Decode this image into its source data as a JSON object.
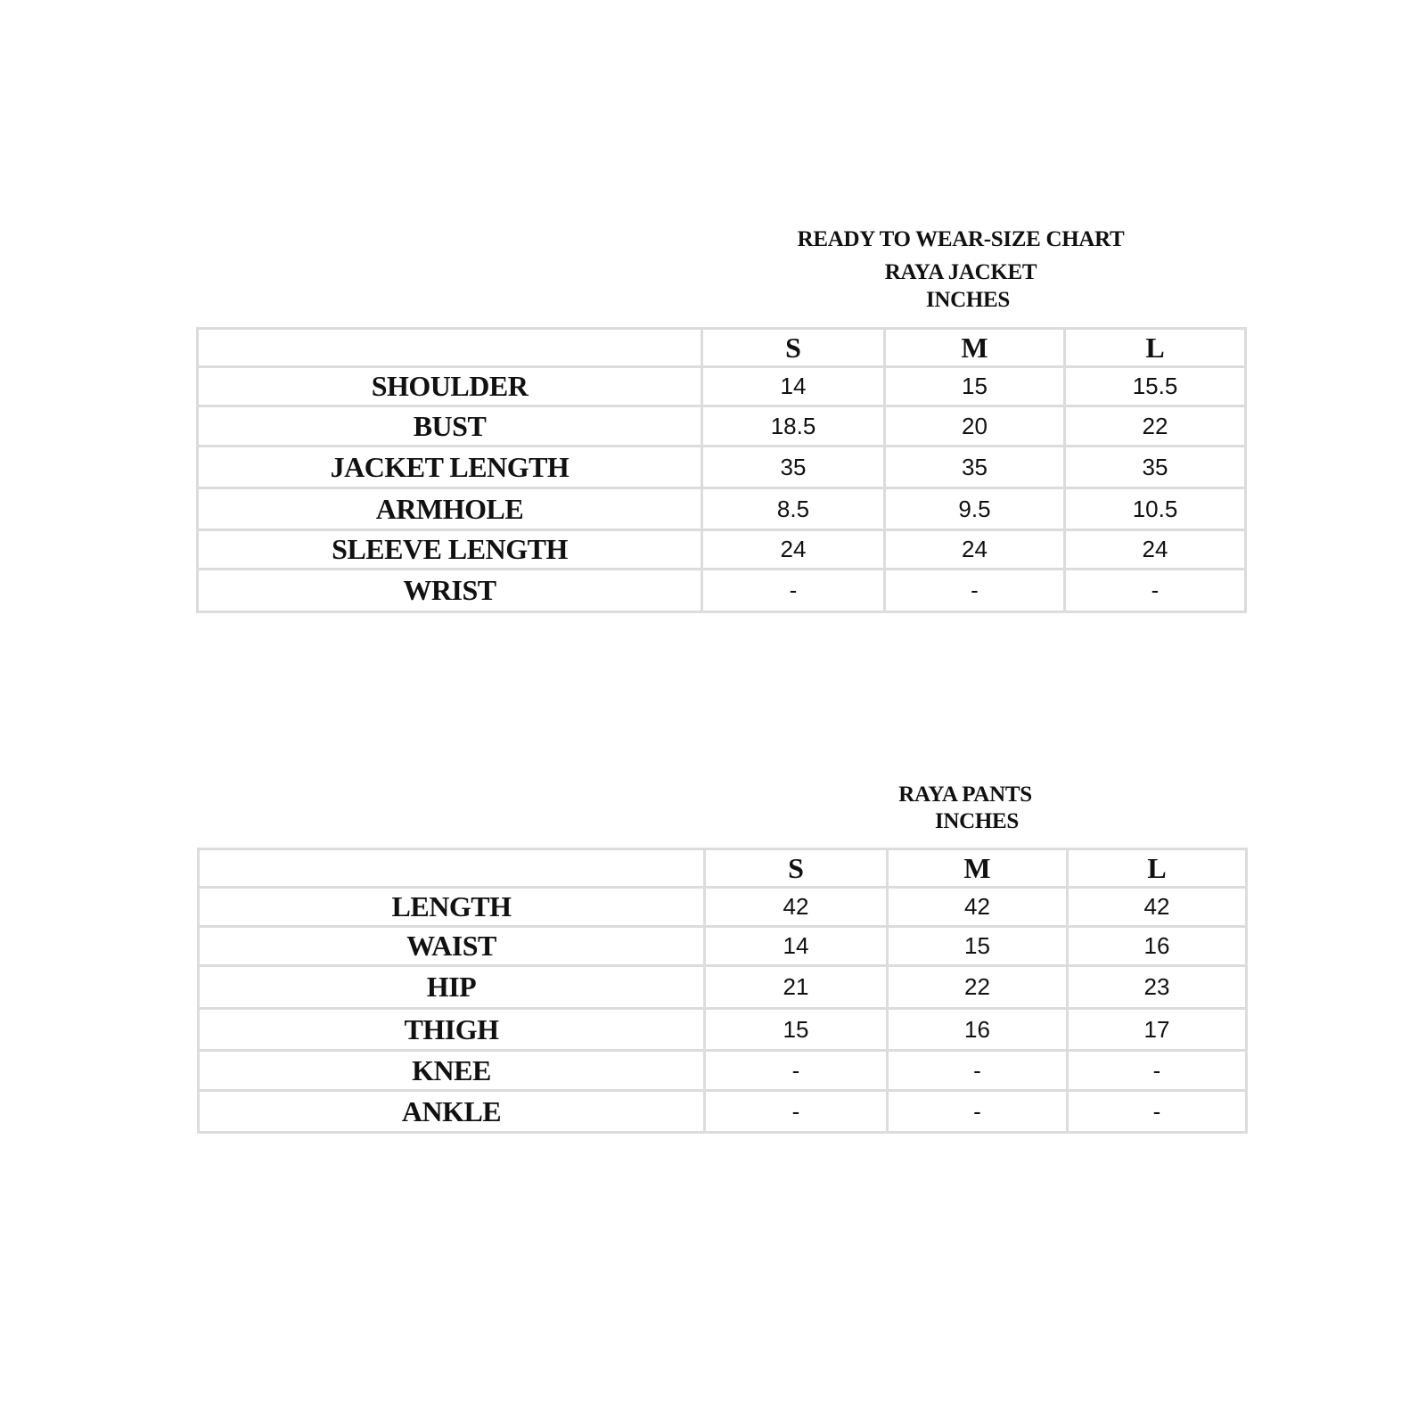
{
  "chart_title": "READY TO WEAR-SIZE CHART",
  "jacket": {
    "title": "RAYA JACKET",
    "unit": "INCHES",
    "sizes": [
      "S",
      "M",
      "L"
    ],
    "rows": [
      {
        "label": "SHOULDER",
        "values": [
          "14",
          "15",
          "15.5"
        ]
      },
      {
        "label": "BUST",
        "values": [
          "18.5",
          "20",
          "22"
        ]
      },
      {
        "label": "JACKET LENGTH",
        "values": [
          "35",
          "35",
          "35"
        ]
      },
      {
        "label": "ARMHOLE",
        "values": [
          "8.5",
          "9.5",
          "10.5"
        ]
      },
      {
        "label": "SLEEVE LENGTH",
        "values": [
          "24",
          "24",
          "24"
        ]
      },
      {
        "label": "WRIST",
        "values": [
          "-",
          "-",
          "-"
        ]
      }
    ]
  },
  "pants": {
    "title": "RAYA PANTS",
    "unit": "INCHES",
    "sizes": [
      "S",
      "M",
      "L"
    ],
    "rows": [
      {
        "label": "LENGTH",
        "values": [
          "42",
          "42",
          "42"
        ]
      },
      {
        "label": "WAIST",
        "values": [
          "14",
          "15",
          "16"
        ]
      },
      {
        "label": "HIP",
        "values": [
          "21",
          "22",
          "23"
        ]
      },
      {
        "label": "THIGH",
        "values": [
          "15",
          "16",
          "17"
        ]
      },
      {
        "label": "KNEE",
        "values": [
          "-",
          "-",
          "-"
        ]
      },
      {
        "label": "ANKLE",
        "values": [
          "-",
          "-",
          "-"
        ]
      }
    ]
  },
  "colors": {
    "border": "#dcdcdc",
    "text": "#111111"
  }
}
